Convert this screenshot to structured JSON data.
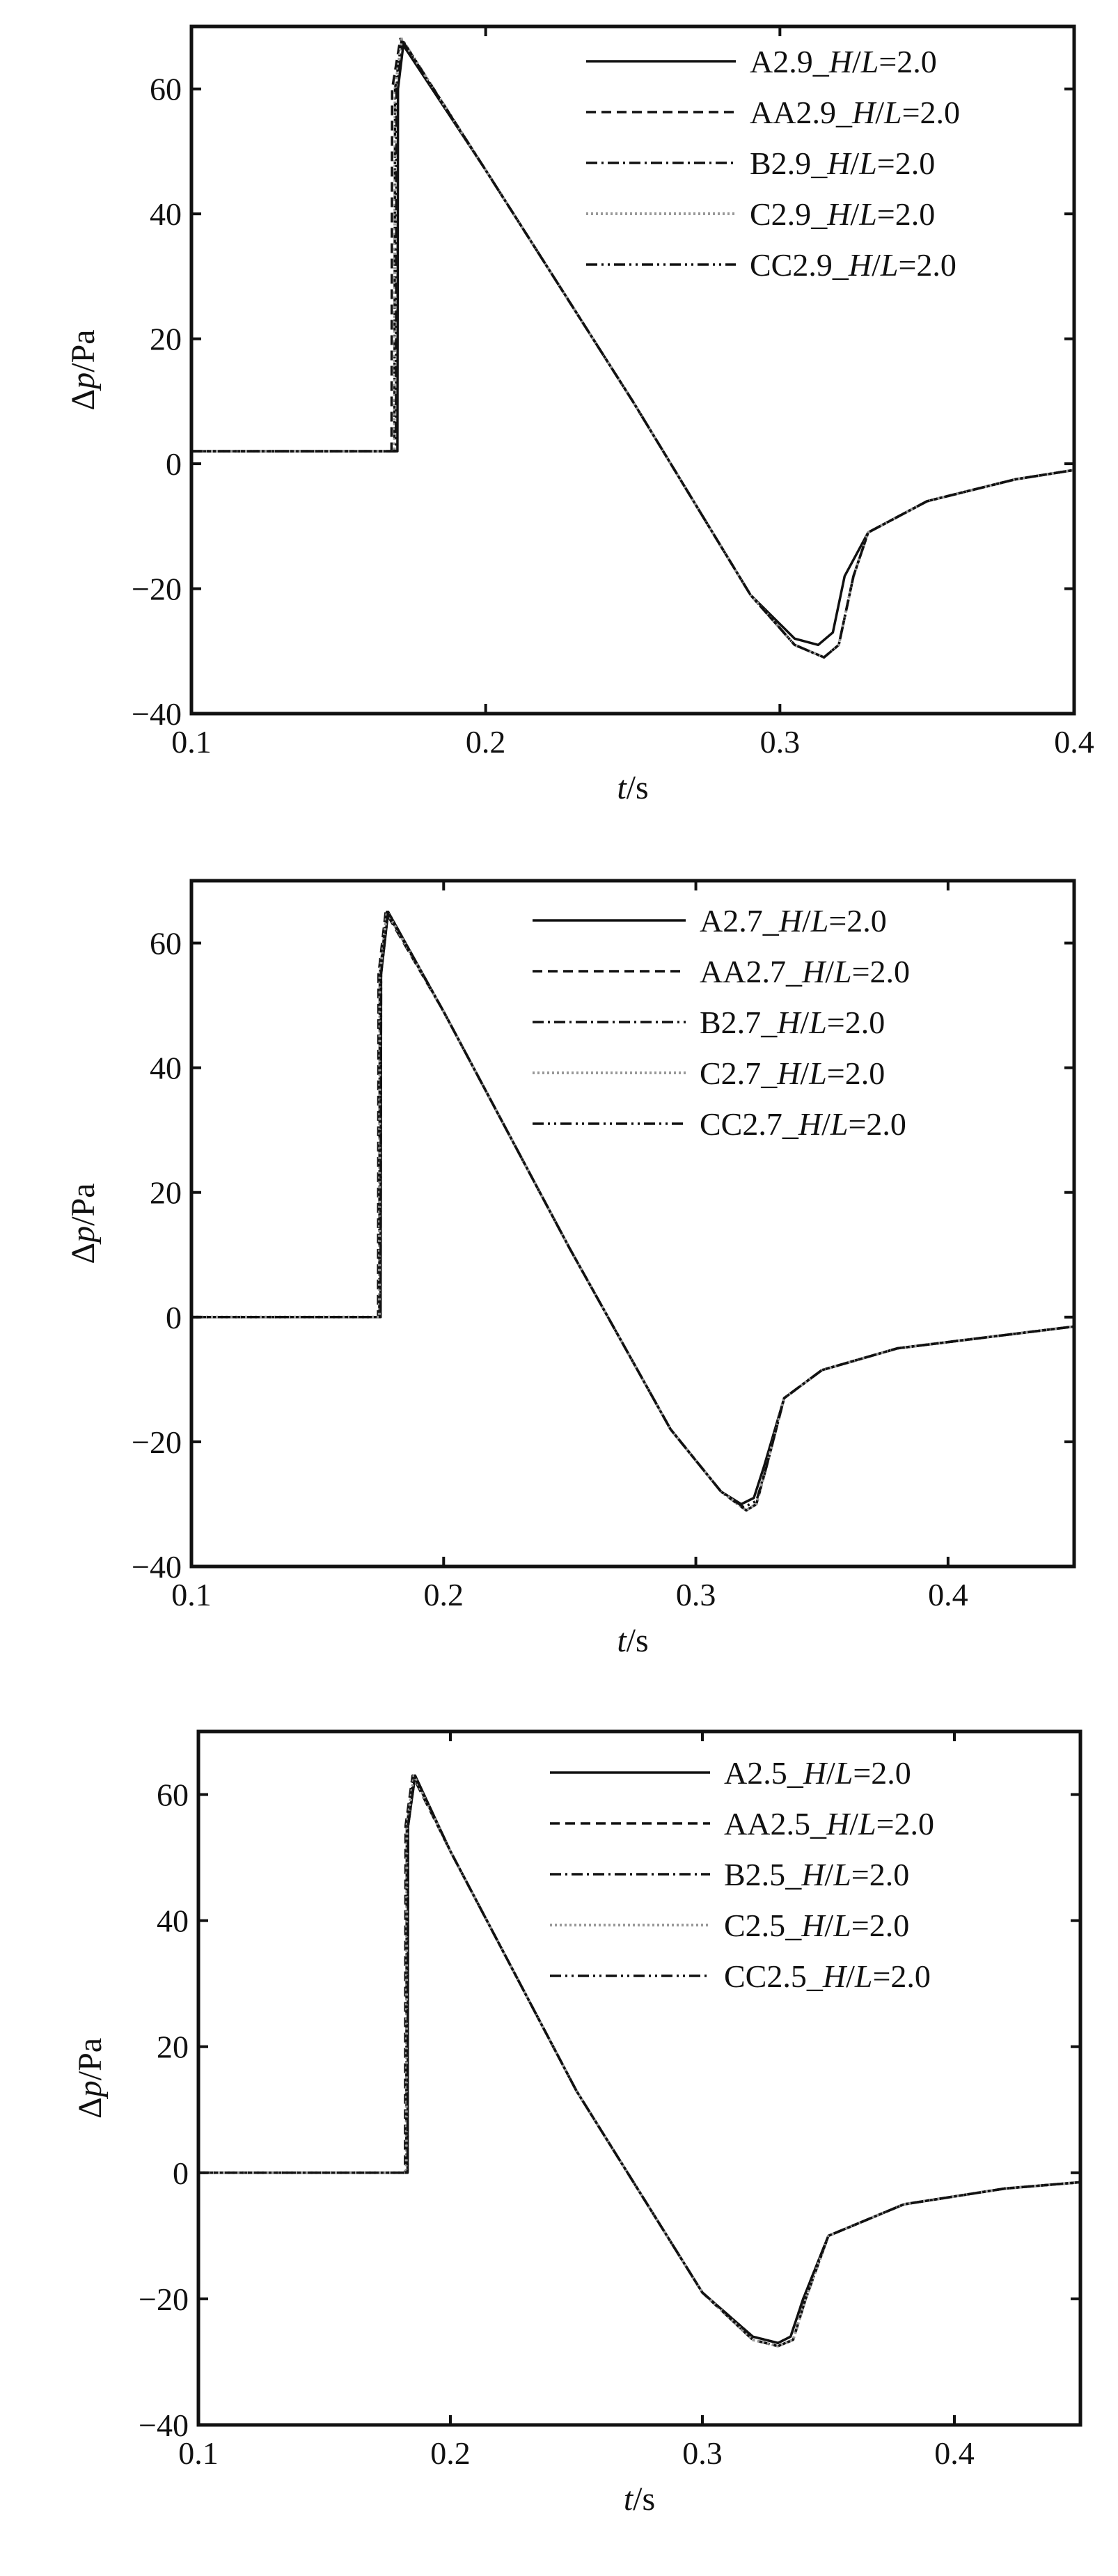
{
  "chart_data": [
    {
      "type": "line",
      "xlabel_var": "t",
      "xlabel_unit": "/s",
      "ylabel_var": "p",
      "ylabel_prefix": "Δ",
      "ylabel_unit": "/Pa",
      "xlim": [
        0.1,
        0.4
      ],
      "ylim": [
        -40,
        70
      ],
      "xticks": [
        0.1,
        0.2,
        0.3,
        0.4
      ],
      "xtick_labels": [
        "0.1",
        "0.2",
        "0.3",
        "0.4"
      ],
      "yticks": [
        -40,
        -20,
        0,
        20,
        40,
        60
      ],
      "ytick_labels": [
        "−40",
        "−20",
        "0",
        "20",
        "40",
        "60"
      ],
      "grid": false,
      "legend_position": "top-right",
      "series": [
        {
          "name": "A2.9",
          "legend_suffix": "_H/L=2.0",
          "style": "solid",
          "color": "#111111",
          "x": [
            0.1,
            0.17,
            0.1702,
            0.172,
            0.2,
            0.25,
            0.29,
            0.305,
            0.313,
            0.318,
            0.322,
            0.33,
            0.35,
            0.38,
            0.4
          ],
          "y": [
            2,
            2,
            60,
            67,
            47,
            10,
            -21,
            -28,
            -29,
            -27,
            -18,
            -11,
            -6,
            -2.5,
            -1
          ]
        },
        {
          "name": "AA2.9",
          "legend_suffix": "_H/L=2.0",
          "style": "dashed",
          "color": "#111111",
          "x": [
            0.1,
            0.168,
            0.1682,
            0.171,
            0.2,
            0.25,
            0.29,
            0.305,
            0.315,
            0.32,
            0.325,
            0.33,
            0.35,
            0.38,
            0.4
          ],
          "y": [
            2,
            2,
            60,
            68,
            47,
            10,
            -21,
            -29,
            -31,
            -29,
            -18,
            -11,
            -6,
            -2.5,
            -1
          ]
        },
        {
          "name": "B2.9",
          "legend_suffix": "_H/L=2.0",
          "style": "dashdot",
          "color": "#111111",
          "x": [
            0.1,
            0.169,
            0.1692,
            0.1715,
            0.2,
            0.25,
            0.29,
            0.305,
            0.315,
            0.32,
            0.325,
            0.33,
            0.35,
            0.38,
            0.4
          ],
          "y": [
            2,
            2,
            60,
            68,
            47,
            10,
            -21,
            -29,
            -31,
            -29,
            -18,
            -11,
            -6,
            -2.5,
            -1
          ]
        },
        {
          "name": "C2.9",
          "legend_suffix": "_H/L=2.0",
          "style": "dotted",
          "color": "#999999",
          "x": [
            0.1,
            0.169,
            0.1692,
            0.1715,
            0.2,
            0.25,
            0.29,
            0.305,
            0.315,
            0.32,
            0.325,
            0.33,
            0.35,
            0.38,
            0.4
          ],
          "y": [
            2,
            2,
            60,
            68,
            47,
            10,
            -21,
            -29,
            -31,
            -29,
            -18,
            -11,
            -6,
            -2.5,
            -1
          ]
        },
        {
          "name": "CC2.9",
          "legend_suffix": "_H/L=2.0",
          "style": "dashdotdot",
          "color": "#111111",
          "x": [
            0.1,
            0.1695,
            0.1697,
            0.172,
            0.2,
            0.25,
            0.29,
            0.305,
            0.315,
            0.32,
            0.325,
            0.33,
            0.35,
            0.38,
            0.4
          ],
          "y": [
            2,
            2,
            60,
            67.5,
            47,
            10,
            -21,
            -29,
            -31,
            -29,
            -18,
            -11,
            -6,
            -2.5,
            -1
          ]
        }
      ]
    },
    {
      "type": "line",
      "xlabel_var": "t",
      "xlabel_unit": "/s",
      "ylabel_var": "p",
      "ylabel_prefix": "Δ",
      "ylabel_unit": "/Pa",
      "xlim": [
        0.1,
        0.45
      ],
      "ylim": [
        -40,
        70
      ],
      "xticks": [
        0.1,
        0.2,
        0.3,
        0.4
      ],
      "xtick_labels": [
        "0.1",
        "0.2",
        "0.3",
        "0.4"
      ],
      "yticks": [
        -40,
        -20,
        0,
        20,
        40,
        60
      ],
      "ytick_labels": [
        "−40",
        "−20",
        "0",
        "20",
        "40",
        "60"
      ],
      "grid": false,
      "legend_position": "top-right",
      "series": [
        {
          "name": "A2.7",
          "legend_suffix": "_H/L=2.0",
          "style": "solid",
          "color": "#111111",
          "x": [
            0.1,
            0.175,
            0.1752,
            0.178,
            0.2,
            0.25,
            0.29,
            0.31,
            0.318,
            0.323,
            0.327,
            0.335,
            0.35,
            0.38,
            0.42,
            0.45
          ],
          "y": [
            0,
            0,
            55,
            65,
            49,
            11,
            -18,
            -28,
            -30,
            -29,
            -24,
            -13,
            -8.5,
            -5,
            -3,
            -1.5
          ]
        },
        {
          "name": "AA2.7",
          "legend_suffix": "_H/L=2.0",
          "style": "dashed",
          "color": "#111111",
          "x": [
            0.1,
            0.174,
            0.1742,
            0.177,
            0.2,
            0.25,
            0.29,
            0.31,
            0.32,
            0.324,
            0.328,
            0.335,
            0.35,
            0.38,
            0.42,
            0.45
          ],
          "y": [
            0,
            0,
            55,
            65,
            49,
            11,
            -18,
            -28,
            -31,
            -30,
            -24,
            -13,
            -8.5,
            -5,
            -3,
            -1.5
          ]
        },
        {
          "name": "B2.7",
          "legend_suffix": "_H/L=2.0",
          "style": "dashdot",
          "color": "#111111",
          "x": [
            0.1,
            0.1745,
            0.1747,
            0.1775,
            0.2,
            0.25,
            0.29,
            0.31,
            0.32,
            0.324,
            0.328,
            0.335,
            0.35,
            0.38,
            0.42,
            0.45
          ],
          "y": [
            0,
            0,
            55,
            65,
            49,
            11,
            -18,
            -28,
            -31,
            -30,
            -24,
            -13,
            -8.5,
            -5,
            -3,
            -1.5
          ]
        },
        {
          "name": "C2.7",
          "legend_suffix": "_H/L=2.0",
          "style": "dotted",
          "color": "#999999",
          "x": [
            0.1,
            0.1745,
            0.1747,
            0.1775,
            0.2,
            0.25,
            0.29,
            0.31,
            0.32,
            0.324,
            0.328,
            0.335,
            0.35,
            0.38,
            0.42,
            0.45
          ],
          "y": [
            0,
            0,
            55,
            65,
            49,
            11,
            -18,
            -28,
            -31,
            -30,
            -24,
            -13,
            -8.5,
            -5,
            -3,
            -1.5
          ]
        },
        {
          "name": "CC2.7",
          "legend_suffix": "_H/L=2.0",
          "style": "dashdotdot",
          "color": "#111111",
          "x": [
            0.1,
            0.175,
            0.1752,
            0.178,
            0.2,
            0.25,
            0.29,
            0.31,
            0.319,
            0.324,
            0.328,
            0.335,
            0.35,
            0.38,
            0.42,
            0.45
          ],
          "y": [
            0,
            0,
            55,
            65,
            49,
            11,
            -18,
            -28,
            -30.5,
            -29.5,
            -24,
            -13,
            -8.5,
            -5,
            -3,
            -1.5
          ]
        }
      ]
    },
    {
      "type": "line",
      "xlabel_var": "t",
      "xlabel_unit": "/s",
      "ylabel_var": "p",
      "ylabel_prefix": "Δ",
      "ylabel_unit": "/Pa",
      "xlim": [
        0.1,
        0.45
      ],
      "ylim": [
        -40,
        70
      ],
      "xticks": [
        0.1,
        0.2,
        0.3,
        0.4
      ],
      "xtick_labels": [
        "0.1",
        "0.2",
        "0.3",
        "0.4"
      ],
      "yticks": [
        -40,
        -20,
        0,
        20,
        40,
        60
      ],
      "ytick_labels": [
        "−40",
        "−20",
        "0",
        "20",
        "40",
        "60"
      ],
      "grid": false,
      "legend_position": "top-right",
      "series": [
        {
          "name": "A2.5",
          "legend_suffix": "_H/L=2.0",
          "style": "solid",
          "color": "#111111",
          "x": [
            0.1,
            0.183,
            0.1832,
            0.186,
            0.2,
            0.25,
            0.3,
            0.32,
            0.33,
            0.335,
            0.34,
            0.35,
            0.38,
            0.42,
            0.45
          ],
          "y": [
            0,
            0,
            55,
            63,
            51,
            13,
            -19,
            -26,
            -27,
            -26,
            -20,
            -10,
            -5,
            -2.5,
            -1.5
          ]
        },
        {
          "name": "AA2.5",
          "legend_suffix": "_H/L=2.0",
          "style": "dashed",
          "color": "#111111",
          "x": [
            0.1,
            0.182,
            0.1822,
            0.185,
            0.2,
            0.25,
            0.3,
            0.32,
            0.33,
            0.336,
            0.341,
            0.35,
            0.38,
            0.42,
            0.45
          ],
          "y": [
            0,
            0,
            55,
            63,
            51,
            13,
            -19,
            -26.5,
            -27.5,
            -26.5,
            -20,
            -10,
            -5,
            -2.5,
            -1.5
          ]
        },
        {
          "name": "B2.5",
          "legend_suffix": "_H/L=2.0",
          "style": "dashdot",
          "color": "#111111",
          "x": [
            0.1,
            0.1825,
            0.1827,
            0.1855,
            0.2,
            0.25,
            0.3,
            0.32,
            0.33,
            0.336,
            0.341,
            0.35,
            0.38,
            0.42,
            0.45
          ],
          "y": [
            0,
            0,
            55,
            63,
            51,
            13,
            -19,
            -26.5,
            -27.5,
            -26.5,
            -20,
            -10,
            -5,
            -2.5,
            -1.5
          ]
        },
        {
          "name": "C2.5",
          "legend_suffix": "_H/L=2.0",
          "style": "dotted",
          "color": "#999999",
          "x": [
            0.1,
            0.1825,
            0.1827,
            0.1855,
            0.2,
            0.25,
            0.3,
            0.32,
            0.33,
            0.336,
            0.341,
            0.35,
            0.38,
            0.42,
            0.45
          ],
          "y": [
            0,
            0,
            55,
            63,
            51,
            13,
            -19,
            -26.5,
            -27.5,
            -26.5,
            -20,
            -10,
            -5,
            -2.5,
            -1.5
          ]
        },
        {
          "name": "CC2.5",
          "legend_suffix": "_H/L=2.0",
          "style": "dashdotdot",
          "color": "#111111",
          "x": [
            0.1,
            0.183,
            0.1832,
            0.186,
            0.2,
            0.25,
            0.3,
            0.32,
            0.33,
            0.335,
            0.34,
            0.35,
            0.38,
            0.42,
            0.45
          ],
          "y": [
            0,
            0,
            55,
            63,
            51,
            13,
            -19,
            -26,
            -27,
            -26,
            -20,
            -10,
            -5,
            -2.5,
            -1.5
          ]
        }
      ]
    }
  ]
}
